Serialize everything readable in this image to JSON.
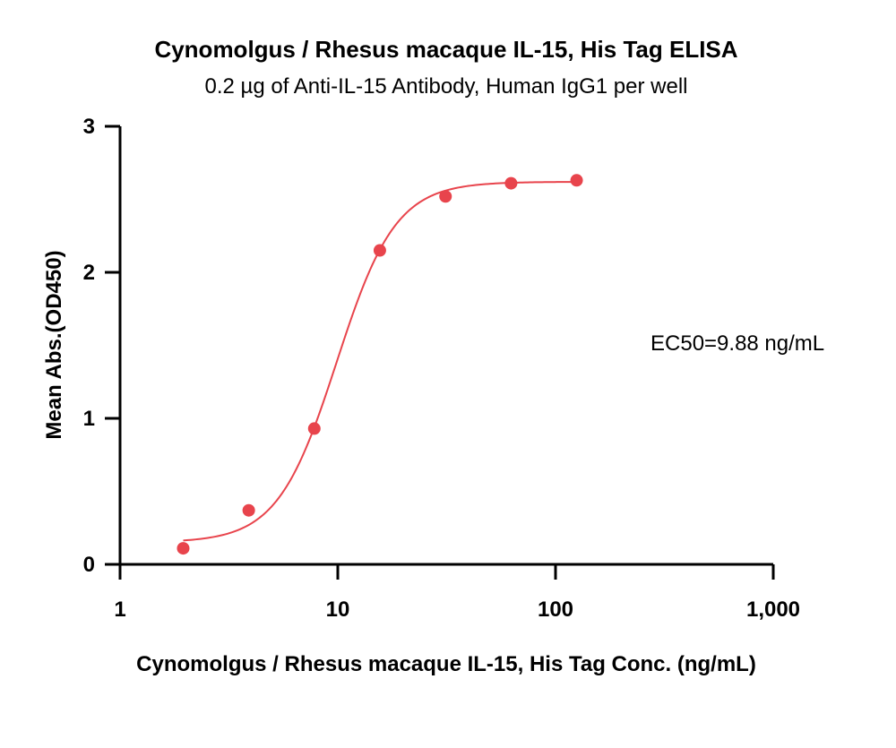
{
  "chart_data": {
    "type": "scatter",
    "title": "Cynomolgus / Rhesus macaque IL-15, His Tag ELISA",
    "subtitle": "0.2 µg of Anti-IL-15 Antibody, Human IgG1 per well",
    "xlabel": "Cynomolgus / Rhesus macaque IL-15, His Tag Conc. (ng/mL)",
    "ylabel": "Mean Abs.(OD450)",
    "xscale": "log",
    "xlim": [
      1,
      1000
    ],
    "ylim": [
      0,
      3
    ],
    "xticks": [
      1,
      10,
      100,
      1000
    ],
    "xtick_labels": [
      "1",
      "10",
      "100",
      "1,000"
    ],
    "yticks": [
      0,
      1,
      2,
      3
    ],
    "ytick_labels": [
      "0",
      "1",
      "2",
      "3"
    ],
    "grid": false,
    "color": "#e8444c",
    "series": [
      {
        "x": [
          1.95,
          3.9,
          7.8,
          15.6,
          31.25,
          62.5,
          125
        ],
        "y": [
          0.11,
          0.37,
          0.93,
          2.15,
          2.52,
          2.61,
          2.63
        ]
      }
    ],
    "fit": {
      "model": "4PL",
      "bottom": 0.15,
      "top": 2.62,
      "ec50": 9.88,
      "hill": 3.2,
      "x_range": [
        1.95,
        125
      ]
    },
    "annotation": "EC50=9.88 ng/mL"
  }
}
